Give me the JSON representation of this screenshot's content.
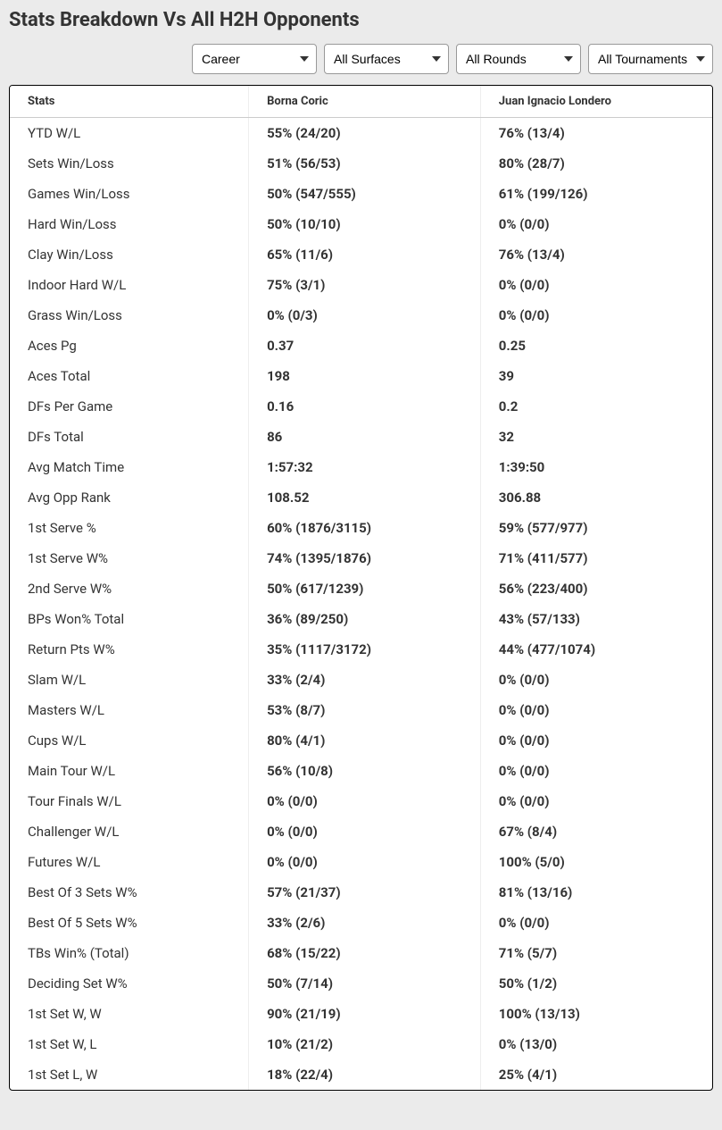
{
  "title": "Stats Breakdown Vs All H2H Opponents",
  "filters": {
    "period": "Career",
    "surface": "All Surfaces",
    "round": "All Rounds",
    "tournament": "All Tournaments"
  },
  "table": {
    "columns": [
      "Stats",
      "Borna Coric",
      "Juan Ignacio Londero"
    ],
    "rows": [
      [
        "YTD W/L",
        "55% (24/20)",
        "76% (13/4)"
      ],
      [
        "Sets Win/Loss",
        "51% (56/53)",
        "80% (28/7)"
      ],
      [
        "Games Win/Loss",
        "50% (547/555)",
        "61% (199/126)"
      ],
      [
        "Hard Win/Loss",
        "50% (10/10)",
        "0% (0/0)"
      ],
      [
        "Clay Win/Loss",
        "65% (11/6)",
        "76% (13/4)"
      ],
      [
        "Indoor Hard W/L",
        "75% (3/1)",
        "0% (0/0)"
      ],
      [
        "Grass Win/Loss",
        "0% (0/3)",
        "0% (0/0)"
      ],
      [
        "Aces Pg",
        "0.37",
        "0.25"
      ],
      [
        "Aces Total",
        "198",
        "39"
      ],
      [
        "DFs Per Game",
        "0.16",
        "0.2"
      ],
      [
        "DFs Total",
        "86",
        "32"
      ],
      [
        "Avg Match Time",
        "1:57:32",
        "1:39:50"
      ],
      [
        "Avg Opp Rank",
        "108.52",
        "306.88"
      ],
      [
        "1st Serve %",
        "60% (1876/3115)",
        "59% (577/977)"
      ],
      [
        "1st Serve W%",
        "74% (1395/1876)",
        "71% (411/577)"
      ],
      [
        "2nd Serve W%",
        "50% (617/1239)",
        "56% (223/400)"
      ],
      [
        "BPs Won% Total",
        "36% (89/250)",
        "43% (57/133)"
      ],
      [
        "Return Pts W%",
        "35% (1117/3172)",
        "44% (477/1074)"
      ],
      [
        "Slam W/L",
        "33% (2/4)",
        "0% (0/0)"
      ],
      [
        "Masters W/L",
        "53% (8/7)",
        "0% (0/0)"
      ],
      [
        "Cups W/L",
        "80% (4/1)",
        "0% (0/0)"
      ],
      [
        "Main Tour W/L",
        "56% (10/8)",
        "0% (0/0)"
      ],
      [
        "Tour Finals W/L",
        "0% (0/0)",
        "0% (0/0)"
      ],
      [
        "Challenger W/L",
        "0% (0/0)",
        "67% (8/4)"
      ],
      [
        "Futures W/L",
        "0% (0/0)",
        "100% (5/0)"
      ],
      [
        "Best Of 3 Sets W%",
        "57% (21/37)",
        "81% (13/16)"
      ],
      [
        "Best Of 5 Sets W%",
        "33% (2/6)",
        "0% (0/0)"
      ],
      [
        "TBs Win% (Total)",
        "68% (15/22)",
        "71% (5/7)"
      ],
      [
        "Deciding Set W%",
        "50% (7/14)",
        "50% (1/2)"
      ],
      [
        "1st Set W, W",
        "90% (21/19)",
        "100% (13/13)"
      ],
      [
        "1st Set W, L",
        "10% (21/2)",
        "0% (13/0)"
      ],
      [
        "1st Set L, W",
        "18% (22/4)",
        "25% (4/1)"
      ]
    ]
  },
  "style": {
    "page_bg": "#ebebeb",
    "table_bg": "#ffffff",
    "border_color": "#000000",
    "col_sep_color": "#eeeeee",
    "header_border": "#cccccc",
    "text_color": "#333333",
    "title_fontsize": 22,
    "cell_fontsize": 15,
    "header_fontsize": 13
  }
}
